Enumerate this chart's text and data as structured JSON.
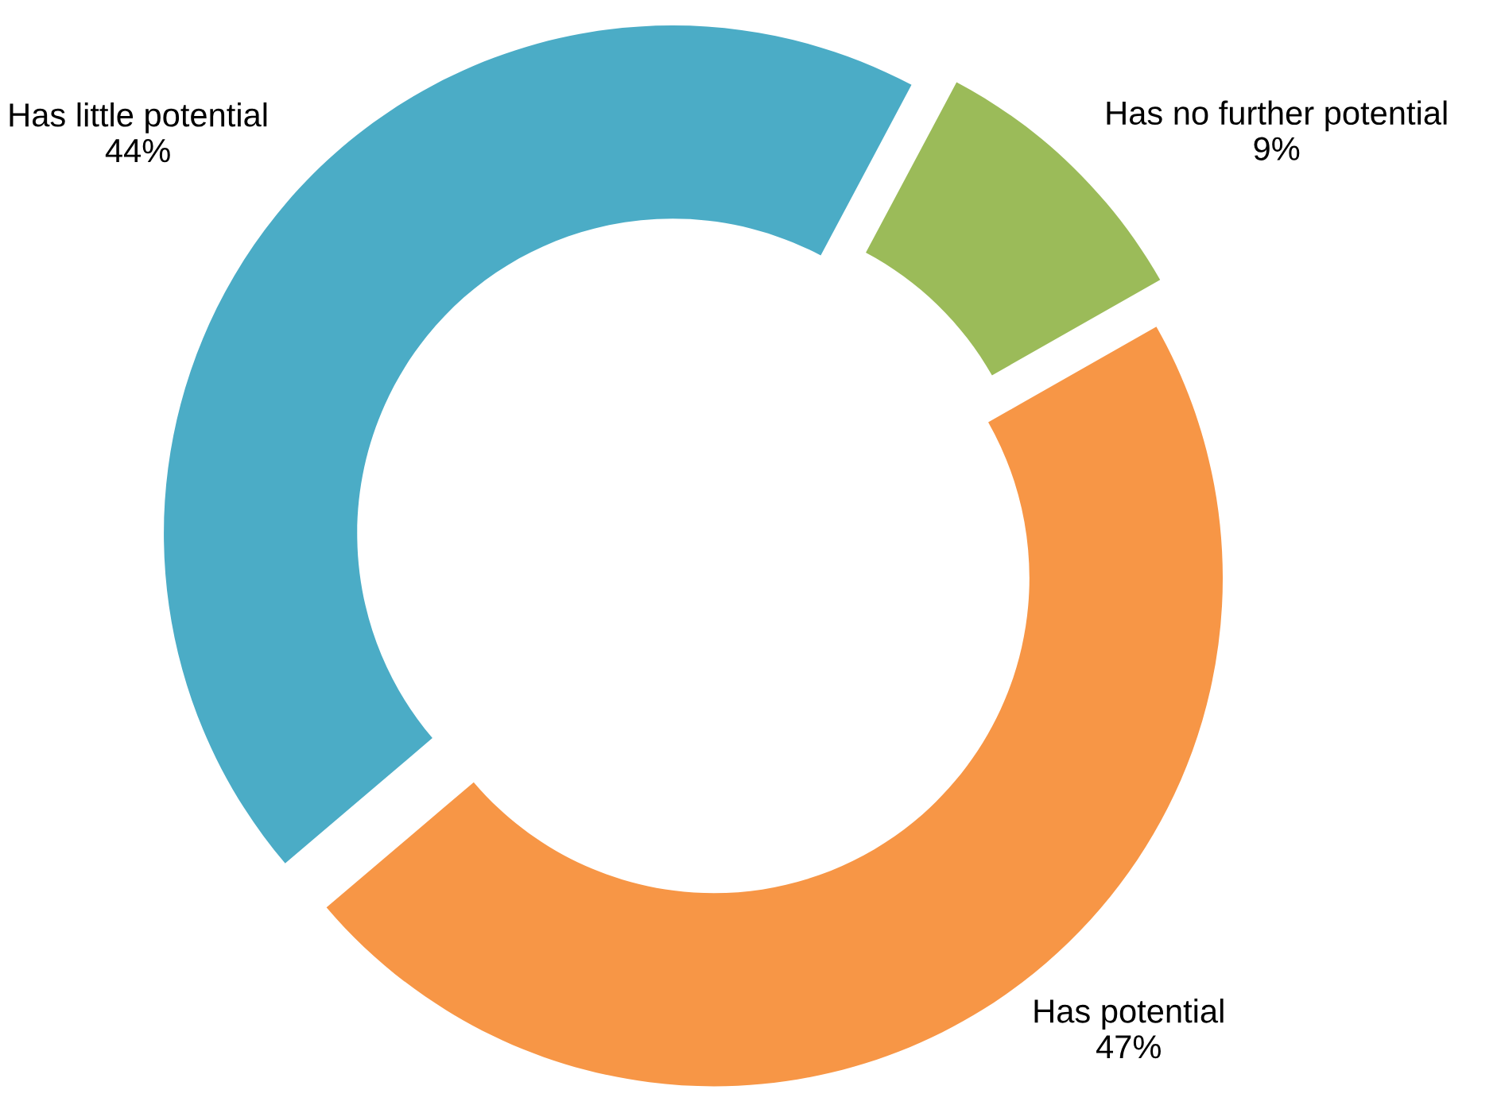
{
  "chart_data": {
    "type": "donut",
    "categories": [
      "Has no further potential",
      "Has potential",
      "Has little potential"
    ],
    "values": [
      9,
      47,
      44
    ],
    "colors": [
      "#9bbb59",
      "#f79646",
      "#4bacc6"
    ],
    "value_labels": [
      "9%",
      "47%",
      "44%"
    ],
    "legend": false
  }
}
